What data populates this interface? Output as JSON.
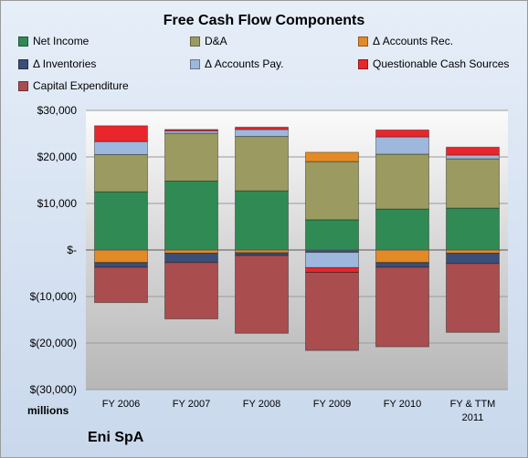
{
  "chart_data": {
    "type": "bar",
    "stacked": true,
    "title": "Free Cash Flow Components",
    "subtitle": "Eni SpA",
    "units_label": "millions",
    "xlabel": "",
    "ylabel": "",
    "ylim": [
      -30000,
      30000
    ],
    "yticks": [
      30000,
      20000,
      10000,
      0,
      -10000,
      -20000,
      -30000
    ],
    "ytick_labels": [
      "$30,000",
      "$20,000",
      "$10,000",
      "$-",
      "$(10,000)",
      "$(20,000)",
      "$(30,000)"
    ],
    "grid": true,
    "legend_position": "top",
    "categories": [
      [
        "FY 2006"
      ],
      [
        "FY 2007"
      ],
      [
        "FY 2008"
      ],
      [
        "FY 2009"
      ],
      [
        "FY 2010"
      ],
      [
        "FY & TTM",
        "2011"
      ]
    ],
    "series": [
      {
        "name": "Net Income",
        "color": "#2f8a53",
        "values": [
          12500,
          14800,
          12700,
          6500,
          8800,
          9000
        ]
      },
      {
        "name": "D&A",
        "color": "#9b9a60",
        "values": [
          8000,
          10300,
          11700,
          12500,
          11800,
          10600
        ]
      },
      {
        "name": "Δ Accounts Rec.",
        "color": "#e38a26",
        "values": [
          -2700,
          -700,
          -600,
          2000,
          -2700,
          -700
        ]
      },
      {
        "name": "Δ Inventories",
        "color": "#3a4e78",
        "values": [
          -1000,
          -2000,
          -600,
          -500,
          -1000,
          -2200
        ]
      },
      {
        "name": "Δ Accounts Pay.",
        "color": "#9db8dc",
        "values": [
          2800,
          500,
          1500,
          -3300,
          3700,
          800
        ]
      },
      {
        "name": "Questionable Cash Sources",
        "color": "#e8262c",
        "values": [
          3400,
          300,
          500,
          -1000,
          1500,
          1700
        ]
      },
      {
        "name": "Capital Expenditure",
        "color": "#a94d4f",
        "values": [
          -7600,
          -12100,
          -16700,
          -16800,
          -17100,
          -14800
        ]
      }
    ]
  }
}
